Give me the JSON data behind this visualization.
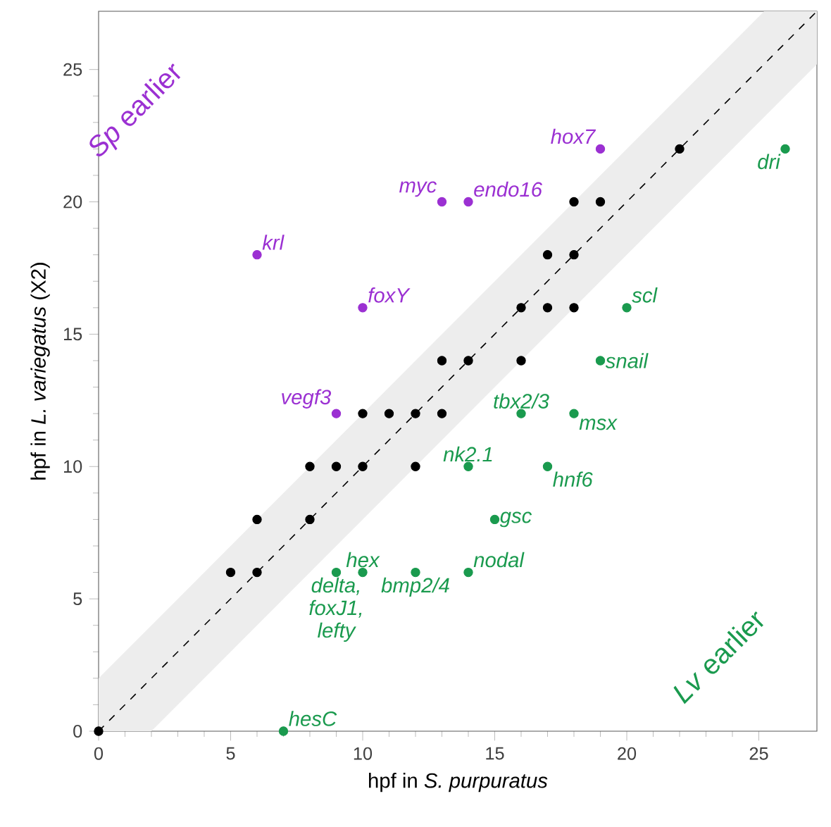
{
  "chart_data": {
    "type": "scatter",
    "xlabel": "hpf in *S. purpuratus*",
    "ylabel": "hpf in *L. variegatus* (X2)",
    "xlim": [
      0,
      27.2
    ],
    "ylim": [
      0,
      27.2
    ],
    "xticks": [
      0,
      5,
      10,
      15,
      20,
      25
    ],
    "yticks": [
      0,
      5,
      10,
      15,
      20,
      25
    ],
    "grid": false,
    "series": [
      {
        "type": "line",
        "line_style": "dashed",
        "marker": "none",
        "color": "#000000",
        "x": [
          0,
          2,
          25.2,
          27.2
        ],
        "values": [
          0,
          2,
          25.2,
          27.2
        ],
        "lower": [
          0,
          0,
          23.2,
          25.2
        ],
        "upper": [
          2,
          4,
          27.2,
          27.2
        ]
      },
      {
        "marker": "circle",
        "color": "#000000",
        "x": [
          0,
          5,
          6,
          6,
          8,
          8,
          9,
          10,
          12,
          10,
          11,
          12,
          13,
          13,
          14,
          16,
          16,
          17,
          18,
          17,
          18,
          18,
          19,
          22
        ],
        "values": [
          0,
          6,
          6,
          8,
          8,
          10,
          10,
          10,
          10,
          12,
          12,
          12,
          12,
          14,
          14,
          14,
          16,
          16,
          16,
          18,
          18,
          20,
          20,
          22
        ]
      },
      {
        "marker": "circle",
        "color": "#9b30d2",
        "x": [
          6,
          10,
          9,
          13,
          14,
          19
        ],
        "values": [
          18,
          16,
          12,
          20,
          20,
          22
        ],
        "value_labels": [
          "krl",
          "foxY",
          "vegf3",
          "myc",
          "endo16",
          "hox7"
        ]
      },
      {
        "marker": "circle",
        "color": "#1a9a4e",
        "x": [
          26,
          20,
          19,
          16,
          18,
          14,
          17,
          15,
          10,
          9,
          12,
          14,
          7
        ],
        "values": [
          22,
          16,
          14,
          12,
          12,
          10,
          10,
          8,
          6,
          6,
          6,
          6,
          0
        ],
        "value_labels": [
          "dri",
          "scl",
          "snail",
          "tbx2/3",
          "msx",
          "nk2.1",
          "hnf6",
          "gsc",
          "hex",
          "delta, foxJ1, lefty",
          "bmp2/4",
          "nodal",
          "hesC"
        ]
      }
    ],
    "annotations": [
      "*Sp* earlier",
      "*Lv* earlier"
    ]
  }
}
